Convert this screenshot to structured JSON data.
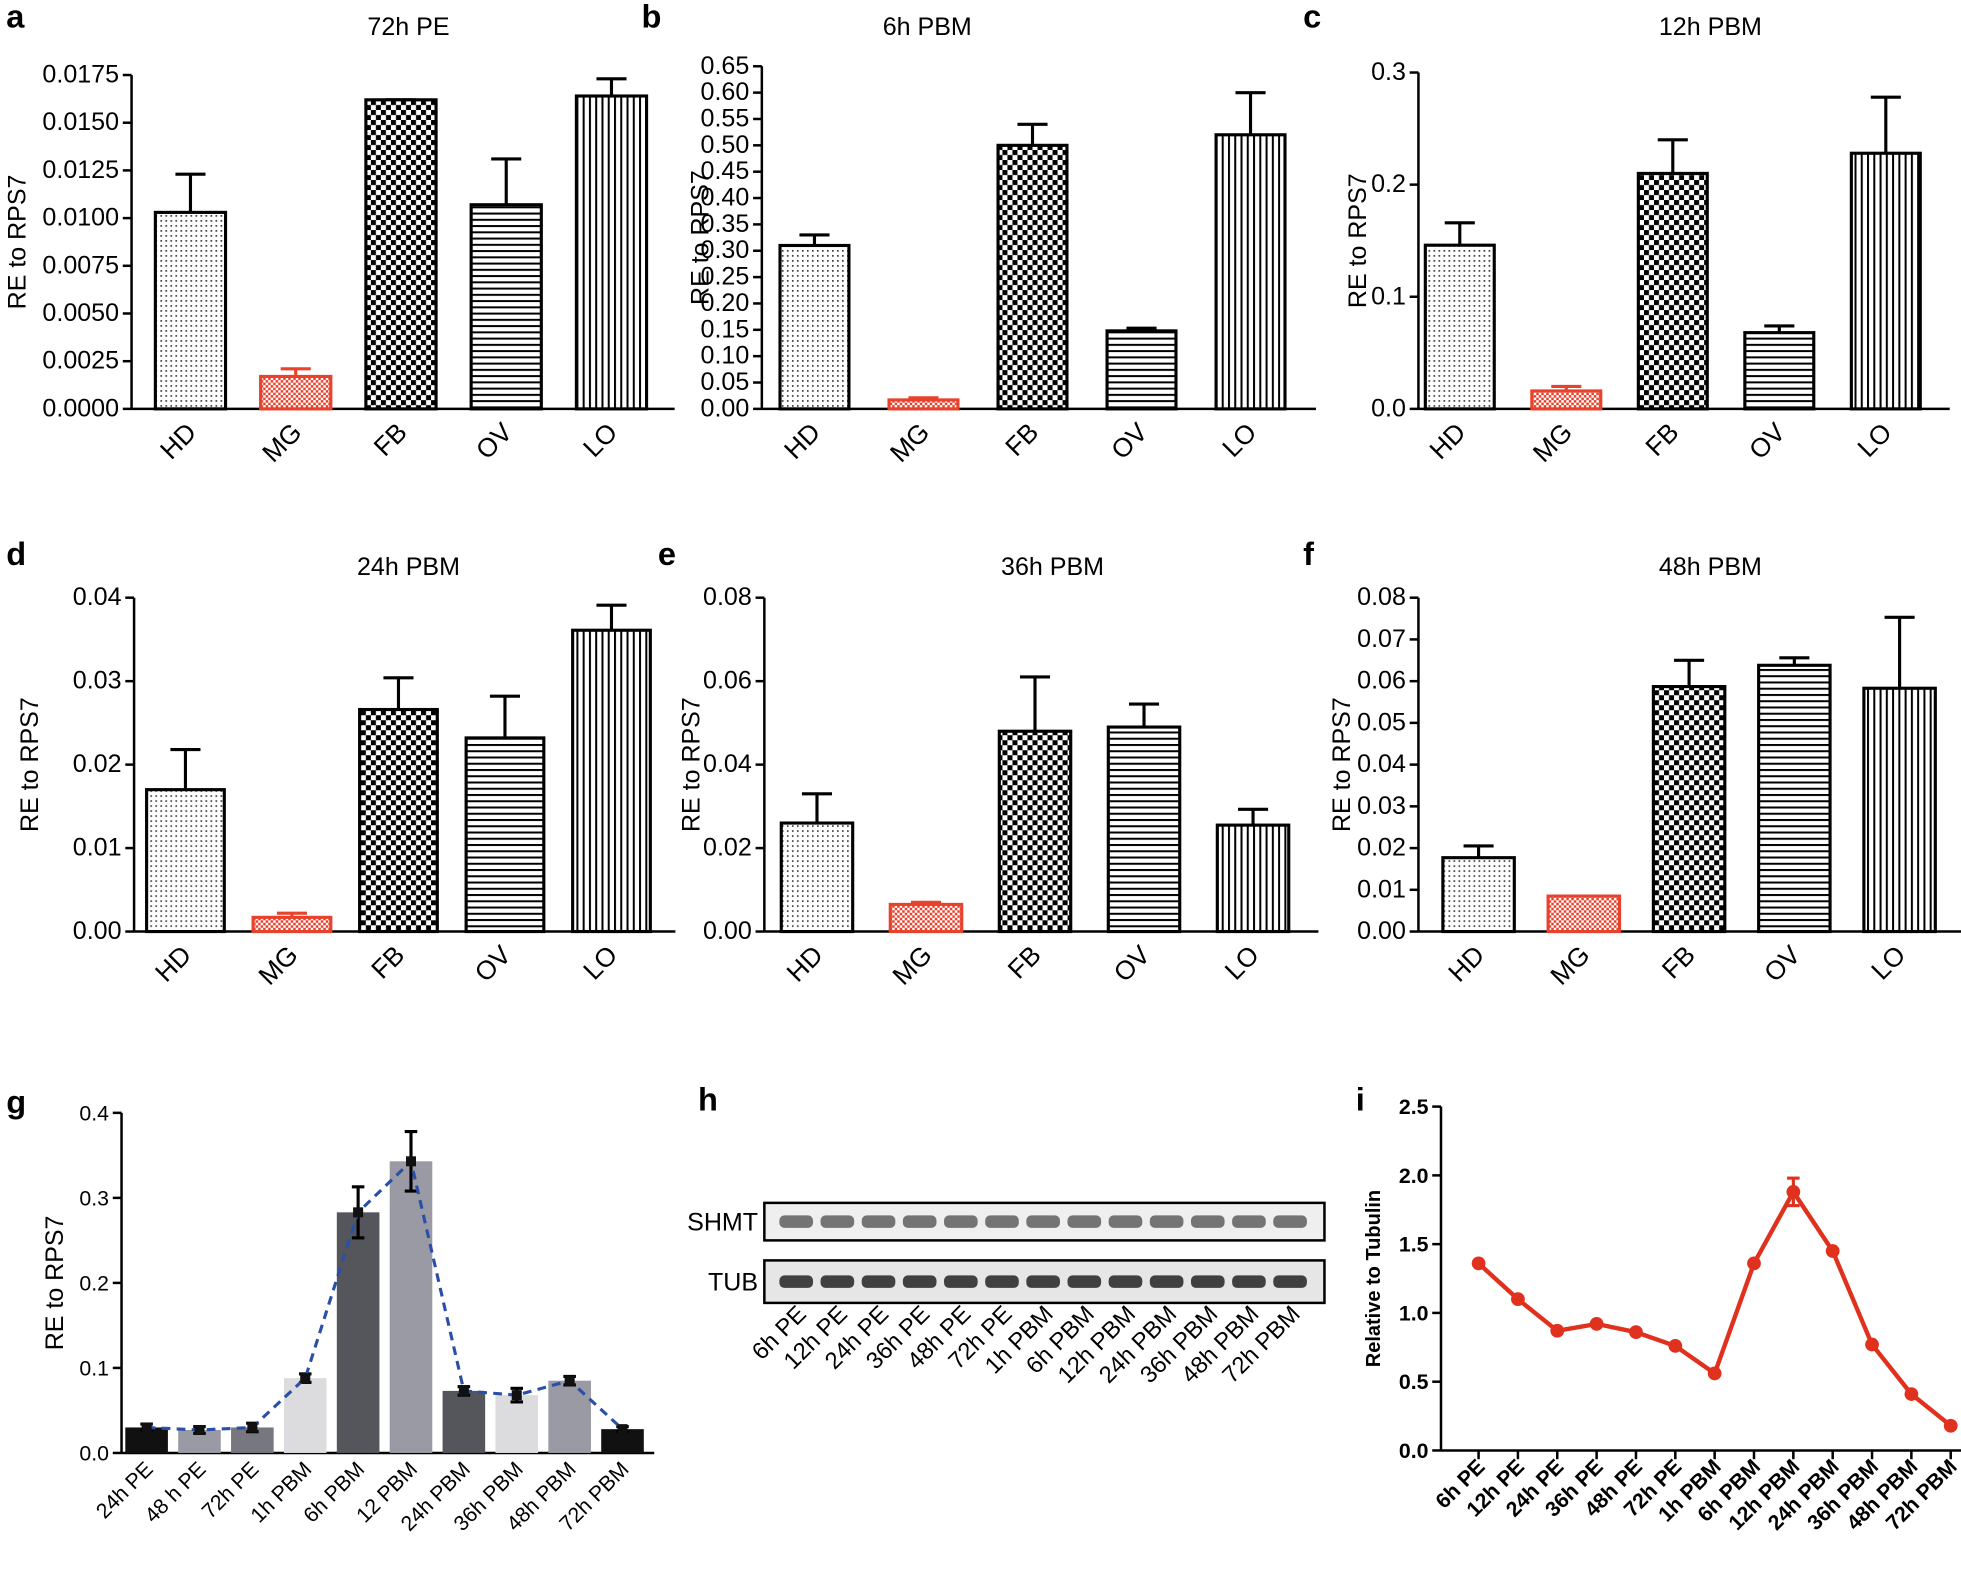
{
  "chart_data": [
    {
      "panel": "a",
      "type": "bar",
      "title": "72h PE",
      "ylabel": "RE to RPS7",
      "categories": [
        "HD",
        "MG",
        "FB",
        "OV",
        "LO"
      ],
      "values": [
        0.0103,
        0.0017,
        0.0162,
        0.0107,
        0.0164
      ],
      "errors": [
        0.002,
        0.0004,
        0,
        0.0024,
        0.0009
      ],
      "colors": [
        "#000000",
        "#e8412c",
        "#000000",
        "#000000",
        "#000000"
      ],
      "patterns": [
        "dots",
        "fine-checker",
        "checker",
        "hlines",
        "vlines"
      ],
      "ylim": [
        0,
        0.0175
      ],
      "yticks": [
        {
          "value": 0,
          "label": "0.0000"
        },
        {
          "value": 0.0025,
          "label": "0.0025"
        },
        {
          "value": 0.005,
          "label": "0.0050"
        },
        {
          "value": 0.0075,
          "label": "0.0075"
        },
        {
          "value": 0.01,
          "label": "0.0100"
        },
        {
          "value": 0.0125,
          "label": "0.0125"
        },
        {
          "value": 0.015,
          "label": "0.0150"
        },
        {
          "value": 0.0175,
          "label": "0.0175"
        }
      ]
    },
    {
      "panel": "b",
      "type": "bar",
      "title": "6h PBM",
      "ylabel": "RE to RPS7",
      "categories": [
        "HD",
        "MG",
        "FB",
        "OV",
        "LO"
      ],
      "values": [
        0.31,
        0.017,
        0.5,
        0.148,
        0.52
      ],
      "errors": [
        0.02,
        0.004,
        0.04,
        0.005,
        0.08
      ],
      "colors": [
        "#000000",
        "#e8412c",
        "#000000",
        "#000000",
        "#000000"
      ],
      "patterns": [
        "dots",
        "fine-checker",
        "checker",
        "hlines",
        "vlines"
      ],
      "ylim": [
        0,
        0.65
      ],
      "yticks": [
        {
          "value": 0,
          "label": "0.00"
        },
        {
          "value": 0.05,
          "label": "0.05"
        },
        {
          "value": 0.1,
          "label": "0.10"
        },
        {
          "value": 0.15,
          "label": "0.15"
        },
        {
          "value": 0.2,
          "label": "0.20"
        },
        {
          "value": 0.25,
          "label": "0.25"
        },
        {
          "value": 0.3,
          "label": "0.30"
        },
        {
          "value": 0.35,
          "label": "0.35"
        },
        {
          "value": 0.4,
          "label": "0.40"
        },
        {
          "value": 0.45,
          "label": "0.45"
        },
        {
          "value": 0.5,
          "label": "0.50"
        },
        {
          "value": 0.55,
          "label": "0.55"
        },
        {
          "value": 0.6,
          "label": "0.60"
        },
        {
          "value": 0.65,
          "label": "0.65"
        }
      ]
    },
    {
      "panel": "c",
      "type": "bar",
      "title": "12h PBM",
      "ylabel": "RE to RPS7",
      "categories": [
        "HD",
        "MG",
        "FB",
        "OV",
        "LO"
      ],
      "values": [
        0.146,
        0.016,
        0.21,
        0.068,
        0.228
      ],
      "errors": [
        0.02,
        0.004,
        0.03,
        0.006,
        0.05
      ],
      "colors": [
        "#000000",
        "#e8412c",
        "#000000",
        "#000000",
        "#000000"
      ],
      "patterns": [
        "dots",
        "fine-checker",
        "checker",
        "hlines",
        "vlines"
      ],
      "ylim": [
        0,
        0.3
      ],
      "yticks": [
        {
          "value": 0,
          "label": "0.0"
        },
        0.1,
        0.2,
        0.3
      ]
    },
    {
      "panel": "d",
      "type": "bar",
      "title": "24h PBM",
      "ylabel": "RE to RPS7",
      "categories": [
        "HD",
        "MG",
        "FB",
        "OV",
        "LO"
      ],
      "values": [
        0.017,
        0.0017,
        0.0266,
        0.0232,
        0.0361
      ],
      "errors": [
        0.0048,
        0.0005,
        0.0038,
        0.005,
        0.003
      ],
      "colors": [
        "#000000",
        "#e8412c",
        "#000000",
        "#000000",
        "#000000"
      ],
      "patterns": [
        "dots",
        "fine-checker",
        "checker",
        "hlines",
        "vlines"
      ],
      "ylim": [
        0,
        0.04
      ],
      "yticks": [
        {
          "value": 0,
          "label": "0.00"
        },
        {
          "value": 0.01,
          "label": "0.01"
        },
        {
          "value": 0.02,
          "label": "0.02"
        },
        {
          "value": 0.03,
          "label": "0.03"
        },
        {
          "value": 0.04,
          "label": "0.04"
        }
      ]
    },
    {
      "panel": "e",
      "type": "bar",
      "title": "36h PBM",
      "ylabel": "RE to RPS7",
      "categories": [
        "HD",
        "MG",
        "FB",
        "OV",
        "LO"
      ],
      "values": [
        0.026,
        0.0065,
        0.048,
        0.049,
        0.0255
      ],
      "errors": [
        0.007,
        0.0005,
        0.013,
        0.0055,
        0.0038
      ],
      "colors": [
        "#000000",
        "#e8412c",
        "#000000",
        "#000000",
        "#000000"
      ],
      "patterns": [
        "dots",
        "fine-checker",
        "checker",
        "hlines",
        "vlines"
      ],
      "ylim": [
        0,
        0.08
      ],
      "yticks": [
        {
          "value": 0,
          "label": "0.00"
        },
        {
          "value": 0.02,
          "label": "0.02"
        },
        {
          "value": 0.04,
          "label": "0.04"
        },
        {
          "value": 0.06,
          "label": "0.06"
        },
        {
          "value": 0.08,
          "label": "0.08"
        }
      ]
    },
    {
      "panel": "f",
      "type": "bar",
      "title": "48h PBM",
      "ylabel": "RE to RPS7",
      "categories": [
        "HD",
        "MG",
        "FB",
        "OV",
        "LO"
      ],
      "values": [
        0.0177,
        0.0085,
        0.0587,
        0.0638,
        0.0583
      ],
      "errors": [
        0.0028,
        0,
        0.0063,
        0.0018,
        0.017
      ],
      "colors": [
        "#000000",
        "#e8412c",
        "#000000",
        "#000000",
        "#000000"
      ],
      "patterns": [
        "dots",
        "fine-checker",
        "checker",
        "hlines",
        "vlines"
      ],
      "ylim": [
        0,
        0.08
      ],
      "yticks": [
        {
          "value": 0,
          "label": "0.00"
        },
        {
          "value": 0.01,
          "label": "0.01"
        },
        {
          "value": 0.02,
          "label": "0.02"
        },
        {
          "value": 0.03,
          "label": "0.03"
        },
        {
          "value": 0.04,
          "label": "0.04"
        },
        {
          "value": 0.05,
          "label": "0.05"
        },
        {
          "value": 0.06,
          "label": "0.06"
        },
        {
          "value": 0.07,
          "label": "0.07"
        },
        {
          "value": 0.08,
          "label": "0.08"
        }
      ]
    },
    {
      "panel": "g",
      "type": "bar",
      "ylabel": "RE to RPS7",
      "categories": [
        "24h PE",
        "48 h PE",
        "72h PE",
        "1h PBM",
        "6h PBM",
        "12 PBM",
        "24h PBM",
        "36h PBM",
        "48h PBM",
        "72h PBM"
      ],
      "values": [
        0.03,
        0.027,
        0.03,
        0.088,
        0.283,
        0.343,
        0.073,
        0.068,
        0.085,
        0.028
      ],
      "errors": [
        0.004,
        0.004,
        0.005,
        0.005,
        0.03,
        0.035,
        0.005,
        0.008,
        0.005,
        0.003
      ],
      "colors": [
        "#111111",
        "#9a9aa4",
        "#77777f",
        "#dcdcde",
        "#55555c",
        "#9a9aa4",
        "#55555c",
        "#dcdcde",
        "#9a9aa4",
        "#111111"
      ],
      "trend_line": true,
      "trend_color": "#2a4fa8",
      "ylim": [
        0,
        0.4
      ],
      "yticks": [
        {
          "value": 0,
          "label": "0.0"
        },
        0.1,
        0.2,
        0.3,
        0.4
      ]
    },
    {
      "panel": "h",
      "type": "blot",
      "row_labels": [
        "SHMT",
        "TUB"
      ],
      "categories": [
        "6h PE",
        "12h PE",
        "24h PE",
        "36h PE",
        "48h PE",
        "72h PE",
        "1h PBM",
        "6h PBM",
        "12h PBM",
        "24h PBM",
        "36h PBM",
        "48h PBM",
        "72h PBM"
      ]
    },
    {
      "panel": "i",
      "type": "line",
      "ylabel": "Relative to Tubulin",
      "color": "#e0301e",
      "categories": [
        "6h PE",
        "12h PE",
        "24h PE",
        "36h PE",
        "48h PE",
        "72h PE",
        "1h PBM",
        "6h PBM",
        "12h PBM",
        "24h PBM",
        "36h PBM",
        "48h PBM",
        "72h PBM"
      ],
      "values": [
        1.36,
        1.1,
        0.87,
        0.92,
        0.86,
        0.76,
        0.56,
        1.36,
        1.88,
        1.45,
        0.77,
        0.41,
        0.18
      ],
      "errors": [
        0,
        0,
        0,
        0,
        0,
        0,
        0,
        0,
        0.1,
        0,
        0,
        0,
        0
      ],
      "ylim": [
        0,
        2.5
      ],
      "yticks": [
        {
          "value": 0,
          "label": "0.0"
        },
        {
          "value": 0.5,
          "label": "0.5"
        },
        {
          "value": 1,
          "label": "1.0"
        },
        {
          "value": 1.5,
          "label": "1.5"
        },
        {
          "value": 2,
          "label": "2.0"
        },
        {
          "value": 2.5,
          "label": "2.5"
        }
      ]
    }
  ]
}
